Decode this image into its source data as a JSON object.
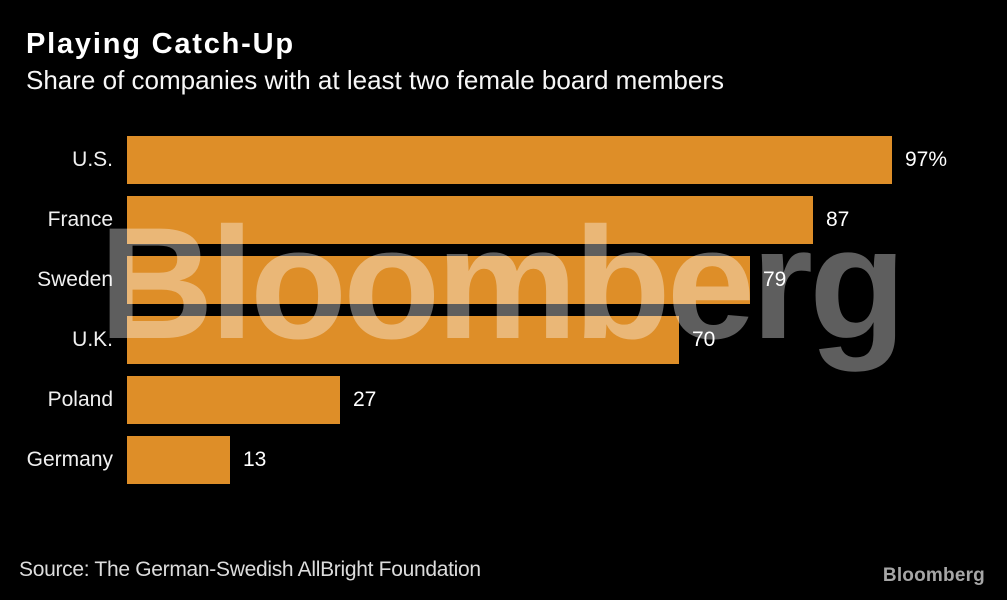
{
  "header": {
    "title": "Playing Catch-Up",
    "subtitle": "Share of companies with at least two female board members"
  },
  "chart_data": {
    "type": "bar",
    "orientation": "horizontal",
    "title": "Playing Catch-Up",
    "subtitle": "Share of companies with at least two female board members",
    "categories": [
      "U.S.",
      "France",
      "Sweden",
      "U.K.",
      "Poland",
      "Germany"
    ],
    "values": [
      97,
      87,
      79,
      70,
      27,
      13
    ],
    "value_labels": [
      "97%",
      "87",
      "79",
      "70",
      "27",
      "13"
    ],
    "unit": "percent",
    "xlim": [
      0,
      100
    ],
    "grid": false,
    "legend": false,
    "bar_color": "#DE8E28"
  },
  "watermark": {
    "text": "Bloomberg"
  },
  "footer": {
    "source": "Source: The German-Swedish AllBright Foundation",
    "logo": "Bloomberg"
  },
  "colors": {
    "background": "#000000",
    "bar": "#DE8E28",
    "title_text": "#ffffff",
    "category_text": "#f0f0f0",
    "value_text": "#ffffff",
    "source_text": "#dcdcdc",
    "logo_text": "#a6a6a6"
  }
}
